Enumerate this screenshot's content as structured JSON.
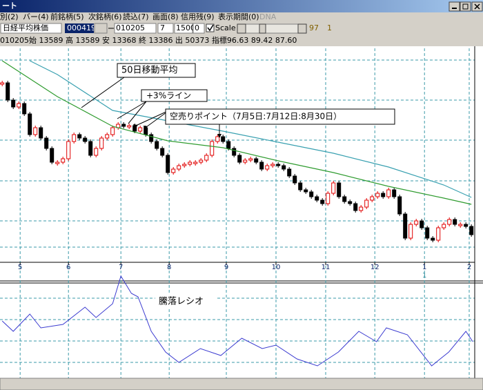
{
  "window": {
    "title": "ート"
  },
  "menu": [
    "別(2)",
    "バー(4)",
    "前銘柄(5)",
    "次銘柄(6)",
    "読込(7)",
    "画面(8)",
    "信用残(9)",
    "表示期間(0)",
    "DNA"
  ],
  "toolbar": {
    "name": "日経平均株価",
    "code": "000419",
    "date": "010205",
    "period": "7",
    "count": "1500",
    "offset": "0",
    "scale_label": "Scale",
    "slider_value": "97",
    "extra": "1"
  },
  "info": "010205始 13589 高 13589 安 13368 終 13386 出 50373 指標96.63  89.42  87.60",
  "chart_data": {
    "type": "candlestick",
    "xlim": [
      -0.4,
      85.6
    ],
    "ylim": [
      9000,
      14900
    ],
    "grid": true,
    "xticks": [
      {
        "value": 3.25,
        "label": "5"
      },
      {
        "value": 12,
        "label": "6"
      },
      {
        "value": 21.5,
        "label": "7"
      },
      {
        "value": 30.25,
        "label": "8"
      },
      {
        "value": 40.6,
        "label": "9"
      },
      {
        "value": 49.6,
        "label": "10"
      },
      {
        "value": 58.6,
        "label": "11"
      },
      {
        "value": 67.5,
        "label": "12"
      },
      {
        "value": 76.5,
        "label": "1"
      },
      {
        "value": 84.6,
        "label": "2"
      }
    ],
    "xticks_secondary": [
      {
        "value": 76.5,
        "label": "1"
      }
    ],
    "series": [
      {
        "up_color": "#e00000",
        "down_color": "#000000",
        "values": [
          14200,
          13700,
          13500,
          13600,
          13300,
          12700,
          12900,
          12600,
          12300,
          11900,
          11900,
          12000,
          12500,
          12700,
          12600,
          12500,
          12100,
          12300,
          12600,
          12700,
          12900,
          13000,
          12940,
          12960,
          12800,
          12900,
          12700,
          12500,
          12300,
          12100,
          11600,
          11700,
          11800,
          11840,
          11900,
          11900,
          11960,
          12100,
          12500,
          12640,
          12500,
          12300,
          12100,
          11900,
          11960,
          12000,
          11900,
          11700,
          11800,
          11840,
          11800,
          11700,
          11500,
          11300,
          11100,
          11040,
          10900,
          10800,
          10700,
          11000,
          11300,
          10900,
          10760,
          10700,
          10500,
          10600,
          10800,
          10900,
          11000,
          10900,
          11100,
          10900,
          10400,
          9700,
          10100,
          10200,
          10000,
          9700,
          9640,
          10000,
          10100,
          10240,
          10100,
          10100,
          10040,
          9800
        ]
      },
      {
        "name": "50日移動平均",
        "color": "#2e9b2e",
        "x": [
          0,
          10,
          20,
          30,
          40,
          50,
          60,
          70,
          80,
          85
        ],
        "values": [
          14840,
          13800,
          12940,
          12520,
          12320,
          11940,
          11600,
          11200,
          10860,
          10680
        ]
      },
      {
        "name": "+3%ライン",
        "color": "#38a0b0",
        "x": [
          5,
          10,
          20,
          30,
          40,
          50,
          60,
          70,
          80,
          85
        ],
        "values": [
          14840,
          14440,
          13400,
          13100,
          12800,
          12480,
          12160,
          11760,
          11240,
          10880
        ]
      }
    ],
    "annotation": "空売りポイント（7月5日:7月12日:8月30日）",
    "indicator": {
      "type": "line",
      "title": "騰落レシオ",
      "color": "#3a3ad0",
      "ylim": [
        0,
        135
      ],
      "x": [
        0,
        2,
        5,
        7,
        11,
        15,
        17,
        20,
        21.5,
        23.4,
        24.6,
        27,
        29.6,
        32,
        35.9,
        39.6,
        43.4,
        47.1,
        49.6,
        53.4,
        57.1,
        60.9,
        64.6,
        67.8,
        69.6,
        73.4,
        77.8,
        80.9,
        84,
        85.25
      ],
      "values": [
        75,
        60,
        85,
        65,
        70,
        95,
        80,
        100,
        140,
        115,
        110,
        60,
        30,
        15,
        35,
        25,
        50,
        35,
        40,
        20,
        10,
        30,
        60,
        45,
        65,
        55,
        10,
        30,
        60,
        45
      ]
    }
  }
}
